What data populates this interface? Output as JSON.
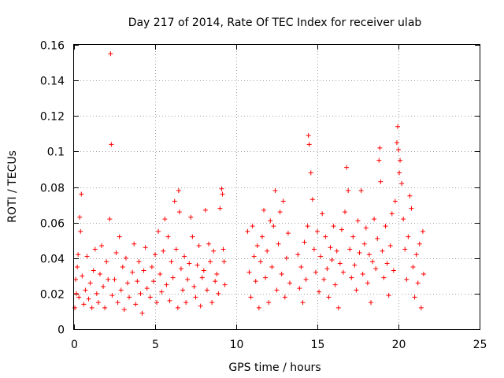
{
  "chart_data": {
    "type": "scatter",
    "title": "Day 217 of 2014, Rate Of TEC Index for receiver ulab",
    "xlabel": "GPS time / hours",
    "ylabel": "ROTI / TECUs",
    "xlim": [
      0,
      25
    ],
    "ylim": [
      0,
      0.16
    ],
    "xticks": [
      0,
      5,
      10,
      15,
      20,
      25
    ],
    "xtick_labels": [
      "0",
      "5",
      "10",
      "15",
      "20",
      "25"
    ],
    "yticks": [
      0,
      0.02,
      0.04,
      0.06,
      0.08,
      0.1,
      0.12,
      0.14,
      0.16
    ],
    "ytick_labels": [
      "0",
      "0.02",
      "0.04",
      "0.06",
      "0.08",
      "0.1",
      "0.12",
      "0.14",
      "0.16"
    ],
    "grid": true,
    "marker": "+",
    "color": "#ff0000",
    "series": [
      {
        "name": "ROTI",
        "points": [
          [
            0.05,
            0.012
          ],
          [
            0.1,
            0.028
          ],
          [
            0.15,
            0.02
          ],
          [
            0.2,
            0.035
          ],
          [
            0.25,
            0.042
          ],
          [
            0.3,
            0.018
          ],
          [
            0.35,
            0.063
          ],
          [
            0.4,
            0.055
          ],
          [
            0.45,
            0.076
          ],
          [
            0.5,
            0.03
          ],
          [
            0.6,
            0.014
          ],
          [
            0.7,
            0.022
          ],
          [
            0.8,
            0.041
          ],
          [
            0.9,
            0.017
          ],
          [
            1.0,
            0.026
          ],
          [
            1.1,
            0.012
          ],
          [
            1.2,
            0.033
          ],
          [
            1.3,
            0.045
          ],
          [
            1.4,
            0.02
          ],
          [
            1.5,
            0.015
          ],
          [
            1.6,
            0.031
          ],
          [
            1.7,
            0.047
          ],
          [
            1.8,
            0.024
          ],
          [
            1.9,
            0.012
          ],
          [
            2.0,
            0.038
          ],
          [
            2.1,
            0.028
          ],
          [
            2.2,
            0.062
          ],
          [
            2.25,
            0.155
          ],
          [
            2.3,
            0.104
          ],
          [
            2.35,
            0.019
          ],
          [
            2.5,
            0.028
          ],
          [
            2.6,
            0.043
          ],
          [
            2.7,
            0.015
          ],
          [
            2.8,
            0.052
          ],
          [
            2.9,
            0.022
          ],
          [
            3.0,
            0.035
          ],
          [
            3.1,
            0.011
          ],
          [
            3.2,
            0.04
          ],
          [
            3.3,
            0.026
          ],
          [
            3.4,
            0.018
          ],
          [
            3.6,
            0.032
          ],
          [
            3.7,
            0.048
          ],
          [
            3.8,
            0.014
          ],
          [
            3.9,
            0.027
          ],
          [
            4.0,
            0.038
          ],
          [
            4.1,
            0.02
          ],
          [
            4.2,
            0.009
          ],
          [
            4.3,
            0.033
          ],
          [
            4.4,
            0.046
          ],
          [
            4.5,
            0.023
          ],
          [
            4.7,
            0.018
          ],
          [
            4.8,
            0.035
          ],
          [
            4.9,
            0.027
          ],
          [
            5.0,
            0.042
          ],
          [
            5.1,
            0.015
          ],
          [
            5.2,
            0.055
          ],
          [
            5.3,
            0.031
          ],
          [
            5.4,
            0.021
          ],
          [
            5.5,
            0.044
          ],
          [
            5.6,
            0.062
          ],
          [
            5.7,
            0.025
          ],
          [
            5.8,
            0.052
          ],
          [
            5.9,
            0.016
          ],
          [
            6.0,
            0.038
          ],
          [
            6.1,
            0.029
          ],
          [
            6.2,
            0.072
          ],
          [
            6.3,
            0.045
          ],
          [
            6.4,
            0.012
          ],
          [
            6.45,
            0.078
          ],
          [
            6.5,
            0.066
          ],
          [
            6.6,
            0.034
          ],
          [
            6.7,
            0.022
          ],
          [
            6.8,
            0.041
          ],
          [
            6.9,
            0.015
          ],
          [
            7.0,
            0.028
          ],
          [
            7.1,
            0.037
          ],
          [
            7.2,
            0.063
          ],
          [
            7.3,
            0.052
          ],
          [
            7.4,
            0.024
          ],
          [
            7.5,
            0.018
          ],
          [
            7.6,
            0.036
          ],
          [
            7.7,
            0.047
          ],
          [
            7.8,
            0.013
          ],
          [
            7.9,
            0.029
          ],
          [
            8.0,
            0.033
          ],
          [
            8.1,
            0.067
          ],
          [
            8.2,
            0.022
          ],
          [
            8.3,
            0.048
          ],
          [
            8.4,
            0.038
          ],
          [
            8.5,
            0.015
          ],
          [
            8.6,
            0.044
          ],
          [
            8.7,
            0.027
          ],
          [
            8.8,
            0.031
          ],
          [
            8.9,
            0.02
          ],
          [
            9.0,
            0.068
          ],
          [
            9.1,
            0.079
          ],
          [
            9.15,
            0.076
          ],
          [
            9.2,
            0.045
          ],
          [
            9.25,
            0.038
          ],
          [
            9.3,
            0.025
          ],
          [
            10.7,
            0.055
          ],
          [
            10.8,
            0.032
          ],
          [
            10.9,
            0.018
          ],
          [
            11.0,
            0.058
          ],
          [
            11.1,
            0.041
          ],
          [
            11.2,
            0.027
          ],
          [
            11.3,
            0.047
          ],
          [
            11.4,
            0.012
          ],
          [
            11.5,
            0.038
          ],
          [
            11.6,
            0.052
          ],
          [
            11.7,
            0.067
          ],
          [
            11.8,
            0.029
          ],
          [
            11.9,
            0.044
          ],
          [
            12.0,
            0.015
          ],
          [
            12.1,
            0.061
          ],
          [
            12.2,
            0.035
          ],
          [
            12.3,
            0.058
          ],
          [
            12.4,
            0.078
          ],
          [
            12.5,
            0.022
          ],
          [
            12.6,
            0.048
          ],
          [
            12.7,
            0.066
          ],
          [
            12.8,
            0.031
          ],
          [
            12.9,
            0.072
          ],
          [
            13.0,
            0.018
          ],
          [
            13.1,
            0.04
          ],
          [
            13.2,
            0.054
          ],
          [
            13.3,
            0.026
          ],
          [
            13.8,
            0.042
          ],
          [
            13.9,
            0.023
          ],
          [
            14.0,
            0.035
          ],
          [
            14.1,
            0.015
          ],
          [
            14.2,
            0.049
          ],
          [
            14.3,
            0.028
          ],
          [
            14.4,
            0.058
          ],
          [
            14.45,
            0.109
          ],
          [
            14.5,
            0.104
          ],
          [
            14.6,
            0.088
          ],
          [
            14.7,
            0.073
          ],
          [
            14.8,
            0.045
          ],
          [
            14.9,
            0.032
          ],
          [
            15.0,
            0.055
          ],
          [
            15.1,
            0.021
          ],
          [
            15.2,
            0.041
          ],
          [
            15.3,
            0.065
          ],
          [
            15.4,
            0.028
          ],
          [
            15.5,
            0.052
          ],
          [
            15.6,
            0.034
          ],
          [
            15.7,
            0.018
          ],
          [
            15.8,
            0.046
          ],
          [
            15.9,
            0.039
          ],
          [
            16.0,
            0.058
          ],
          [
            16.1,
            0.025
          ],
          [
            16.2,
            0.044
          ],
          [
            16.3,
            0.012
          ],
          [
            16.4,
            0.037
          ],
          [
            16.5,
            0.056
          ],
          [
            16.6,
            0.032
          ],
          [
            16.7,
            0.066
          ],
          [
            16.8,
            0.091
          ],
          [
            16.9,
            0.078
          ],
          [
            17.0,
            0.045
          ],
          [
            17.1,
            0.029
          ],
          [
            17.2,
            0.052
          ],
          [
            17.3,
            0.036
          ],
          [
            17.4,
            0.022
          ],
          [
            17.5,
            0.061
          ],
          [
            17.6,
            0.043
          ],
          [
            17.7,
            0.078
          ],
          [
            17.8,
            0.031
          ],
          [
            17.9,
            0.048
          ],
          [
            18.0,
            0.057
          ],
          [
            18.1,
            0.026
          ],
          [
            18.2,
            0.042
          ],
          [
            18.3,
            0.015
          ],
          [
            18.4,
            0.038
          ],
          [
            18.5,
            0.062
          ],
          [
            18.6,
            0.034
          ],
          [
            18.7,
            0.051
          ],
          [
            18.8,
            0.095
          ],
          [
            18.85,
            0.102
          ],
          [
            18.9,
            0.083
          ],
          [
            19.0,
            0.044
          ],
          [
            19.1,
            0.029
          ],
          [
            19.2,
            0.058
          ],
          [
            19.3,
            0.037
          ],
          [
            19.4,
            0.019
          ],
          [
            19.5,
            0.047
          ],
          [
            19.6,
            0.065
          ],
          [
            19.7,
            0.033
          ],
          [
            19.8,
            0.072
          ],
          [
            19.9,
            0.105
          ],
          [
            19.95,
            0.114
          ],
          [
            20.0,
            0.101
          ],
          [
            20.05,
            0.088
          ],
          [
            20.1,
            0.095
          ],
          [
            20.2,
            0.082
          ],
          [
            20.3,
            0.062
          ],
          [
            20.4,
            0.045
          ],
          [
            20.5,
            0.028
          ],
          [
            20.6,
            0.052
          ],
          [
            20.7,
            0.075
          ],
          [
            20.8,
            0.068
          ],
          [
            20.9,
            0.035
          ],
          [
            21.0,
            0.018
          ],
          [
            21.1,
            0.042
          ],
          [
            21.2,
            0.026
          ],
          [
            21.3,
            0.048
          ],
          [
            21.4,
            0.012
          ],
          [
            21.5,
            0.055
          ],
          [
            21.55,
            0.031
          ]
        ]
      }
    ]
  }
}
